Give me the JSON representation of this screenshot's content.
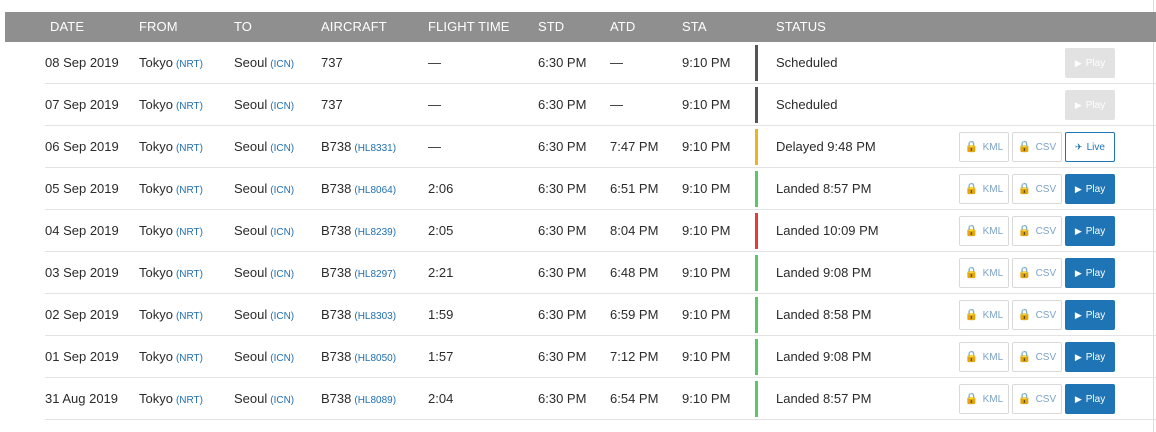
{
  "columns": [
    "DATE",
    "FROM",
    "TO",
    "AIRCRAFT",
    "FLIGHT TIME",
    "STD",
    "ATD",
    "STA",
    "STATUS"
  ],
  "buttons": {
    "kml": "KML",
    "csv": "CSV",
    "play": "Play",
    "live": "Live"
  },
  "icons": {
    "lock": "lock-icon",
    "play": "play-icon",
    "live": "airplane-icon"
  },
  "status_colors": {
    "scheduled": "#555555",
    "delayed": "#f0b41b",
    "on_time": "#5cc66b",
    "late": "#e43b3b"
  },
  "rows": [
    {
      "date": "08 Sep 2019",
      "from_city": "Tokyo",
      "from_code": "(NRT)",
      "to_city": "Seoul",
      "to_code": "(ICN)",
      "aircraft": "737",
      "reg": "",
      "flight_time": "—",
      "std": "6:30 PM",
      "atd": "—",
      "sta": "9:10 PM",
      "status": "Scheduled",
      "status_color": "#555555",
      "action": "disabled"
    },
    {
      "date": "07 Sep 2019",
      "from_city": "Tokyo",
      "from_code": "(NRT)",
      "to_city": "Seoul",
      "to_code": "(ICN)",
      "aircraft": "737",
      "reg": "",
      "flight_time": "—",
      "std": "6:30 PM",
      "atd": "—",
      "sta": "9:10 PM",
      "status": "Scheduled",
      "status_color": "#555555",
      "action": "disabled"
    },
    {
      "date": "06 Sep 2019",
      "from_city": "Tokyo",
      "from_code": "(NRT)",
      "to_city": "Seoul",
      "to_code": "(ICN)",
      "aircraft": "B738",
      "reg": "(HL8331)",
      "flight_time": "—",
      "std": "6:30 PM",
      "atd": "7:47 PM",
      "sta": "9:10 PM",
      "status": "Delayed 9:48 PM",
      "status_color": "#f0b41b",
      "action": "live"
    },
    {
      "date": "05 Sep 2019",
      "from_city": "Tokyo",
      "from_code": "(NRT)",
      "to_city": "Seoul",
      "to_code": "(ICN)",
      "aircraft": "B738",
      "reg": "(HL8064)",
      "flight_time": "2:06",
      "std": "6:30 PM",
      "atd": "6:51 PM",
      "sta": "9:10 PM",
      "status": "Landed 8:57 PM",
      "status_color": "#5cc66b",
      "action": "play"
    },
    {
      "date": "04 Sep 2019",
      "from_city": "Tokyo",
      "from_code": "(NRT)",
      "to_city": "Seoul",
      "to_code": "(ICN)",
      "aircraft": "B738",
      "reg": "(HL8239)",
      "flight_time": "2:05",
      "std": "6:30 PM",
      "atd": "8:04 PM",
      "sta": "9:10 PM",
      "status": "Landed 10:09 PM",
      "status_color": "#e43b3b",
      "action": "play"
    },
    {
      "date": "03 Sep 2019",
      "from_city": "Tokyo",
      "from_code": "(NRT)",
      "to_city": "Seoul",
      "to_code": "(ICN)",
      "aircraft": "B738",
      "reg": "(HL8297)",
      "flight_time": "2:21",
      "std": "6:30 PM",
      "atd": "6:48 PM",
      "sta": "9:10 PM",
      "status": "Landed 9:08 PM",
      "status_color": "#5cc66b",
      "action": "play"
    },
    {
      "date": "02 Sep 2019",
      "from_city": "Tokyo",
      "from_code": "(NRT)",
      "to_city": "Seoul",
      "to_code": "(ICN)",
      "aircraft": "B738",
      "reg": "(HL8303)",
      "flight_time": "1:59",
      "std": "6:30 PM",
      "atd": "6:59 PM",
      "sta": "9:10 PM",
      "status": "Landed 8:58 PM",
      "status_color": "#5cc66b",
      "action": "play"
    },
    {
      "date": "01 Sep 2019",
      "from_city": "Tokyo",
      "from_code": "(NRT)",
      "to_city": "Seoul",
      "to_code": "(ICN)",
      "aircraft": "B738",
      "reg": "(HL8050)",
      "flight_time": "1:57",
      "std": "6:30 PM",
      "atd": "7:12 PM",
      "sta": "9:10 PM",
      "status": "Landed 9:08 PM",
      "status_color": "#5cc66b",
      "action": "play"
    },
    {
      "date": "31 Aug 2019",
      "from_city": "Tokyo",
      "from_code": "(NRT)",
      "to_city": "Seoul",
      "to_code": "(ICN)",
      "aircraft": "B738",
      "reg": "(HL8089)",
      "flight_time": "2:04",
      "std": "6:30 PM",
      "atd": "6:54 PM",
      "sta": "9:10 PM",
      "status": "Landed 8:57 PM",
      "status_color": "#5cc66b",
      "action": "play"
    }
  ]
}
